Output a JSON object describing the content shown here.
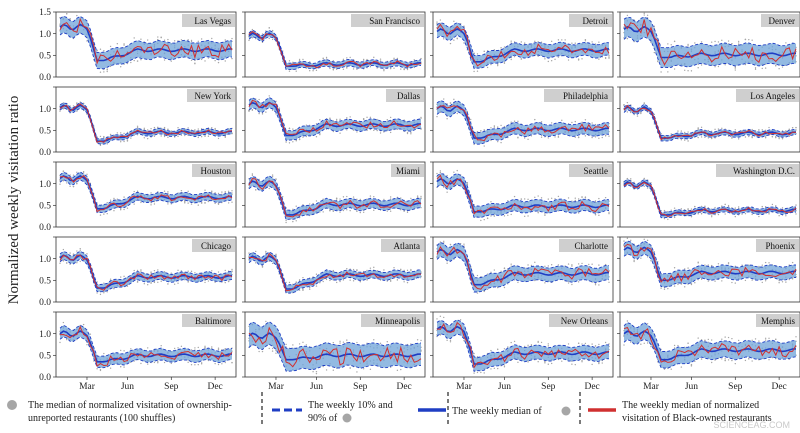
{
  "chart_data": {
    "type": "line",
    "ylabel": "Normalized weekly visitation ratio",
    "ylim": [
      0,
      1.5
    ],
    "yticks": [
      "0.0",
      "0.5",
      "1.0",
      "1.5"
    ],
    "xticks": [
      "Mar",
      "Jun",
      "Sep",
      "Dec"
    ],
    "weeks": 52,
    "panels": [
      {
        "city": "Las Vegas",
        "profile": "lv"
      },
      {
        "city": "San Francisco",
        "profile": "sf"
      },
      {
        "city": "Detroit",
        "profile": "de"
      },
      {
        "city": "Denver",
        "profile": "dn"
      },
      {
        "city": "New York",
        "profile": "ny"
      },
      {
        "city": "Dallas",
        "profile": "da"
      },
      {
        "city": "Philadelphia",
        "profile": "ph"
      },
      {
        "city": "Los Angeles",
        "profile": "la"
      },
      {
        "city": "Houston",
        "profile": "ho"
      },
      {
        "city": "Miami",
        "profile": "mi"
      },
      {
        "city": "Seattle",
        "profile": "se"
      },
      {
        "city": "Washington D.C.",
        "profile": "dc"
      },
      {
        "city": "Chicago",
        "profile": "ch"
      },
      {
        "city": "Atlanta",
        "profile": "at"
      },
      {
        "city": "Charlotte",
        "profile": "cl"
      },
      {
        "city": "Phoenix",
        "profile": "px"
      },
      {
        "city": "Baltimore",
        "profile": "ba"
      },
      {
        "city": "Minneapolis",
        "profile": "mn"
      },
      {
        "city": "New Orleans",
        "profile": "no"
      },
      {
        "city": "Memphis",
        "profile": "me"
      }
    ],
    "profiles": {
      "lv": {
        "pre": 1.15,
        "low": 0.38,
        "after": 0.62,
        "spread": 0.18
      },
      "sf": {
        "pre": 0.95,
        "low": 0.25,
        "after": 0.3,
        "spread": 0.06
      },
      "de": {
        "pre": 1.05,
        "low": 0.35,
        "after": 0.62,
        "spread": 0.14
      },
      "dn": {
        "pre": 1.1,
        "low": 0.45,
        "after": 0.52,
        "spread": 0.22
      },
      "ny": {
        "pre": 1.02,
        "low": 0.25,
        "after": 0.45,
        "spread": 0.05
      },
      "da": {
        "pre": 1.08,
        "low": 0.38,
        "after": 0.62,
        "spread": 0.1
      },
      "ph": {
        "pre": 1.0,
        "low": 0.32,
        "after": 0.52,
        "spread": 0.12
      },
      "la": {
        "pre": 0.98,
        "low": 0.32,
        "after": 0.43,
        "spread": 0.05
      },
      "ho": {
        "pre": 1.12,
        "low": 0.42,
        "after": 0.68,
        "spread": 0.08
      },
      "mi": {
        "pre": 1.0,
        "low": 0.28,
        "after": 0.52,
        "spread": 0.1
      },
      "se": {
        "pre": 1.05,
        "low": 0.35,
        "after": 0.48,
        "spread": 0.12
      },
      "dc": {
        "pre": 0.98,
        "low": 0.28,
        "after": 0.38,
        "spread": 0.05
      },
      "ch": {
        "pre": 1.02,
        "low": 0.32,
        "after": 0.58,
        "spread": 0.08
      },
      "at": {
        "pre": 1.0,
        "low": 0.3,
        "after": 0.62,
        "spread": 0.08
      },
      "cl": {
        "pre": 1.15,
        "low": 0.4,
        "after": 0.65,
        "spread": 0.15
      },
      "px": {
        "pre": 1.2,
        "low": 0.5,
        "after": 0.68,
        "spread": 0.14
      },
      "ba": {
        "pre": 1.0,
        "low": 0.35,
        "after": 0.5,
        "spread": 0.12
      },
      "mn": {
        "pre": 0.95,
        "low": 0.4,
        "after": 0.5,
        "spread": 0.25
      },
      "no": {
        "pre": 1.1,
        "low": 0.3,
        "after": 0.55,
        "spread": 0.15
      },
      "me": {
        "pre": 1.0,
        "low": 0.4,
        "after": 0.62,
        "spread": 0.18
      }
    },
    "legend": [
      {
        "marker": "dot",
        "color": "#a6a6a6",
        "label_1": "The median of normalized visitation of ownership-",
        "label_2": "unreported  restaurants (100 shuffles)"
      },
      {
        "marker": "dashed-line",
        "color": "#1f3ec4",
        "label_1": "The weekly 10% and",
        "label_2": "90% of"
      },
      {
        "marker": "solid-line",
        "color": "#1f3ec4",
        "label_1": "The weekly median of"
      },
      {
        "marker": "solid-line",
        "color": "#d03030",
        "label_1": "The weekly median of normalized",
        "label_2": "visitation of Black-owned restaurants"
      }
    ],
    "colors": {
      "band": "#6fa3d8",
      "median": "#1f3ec4",
      "black_owned": "#d03030",
      "dots": "#a6a6a6",
      "label_box": "#cfcfcf"
    }
  },
  "watermark": "SCIENCEAG.COM"
}
